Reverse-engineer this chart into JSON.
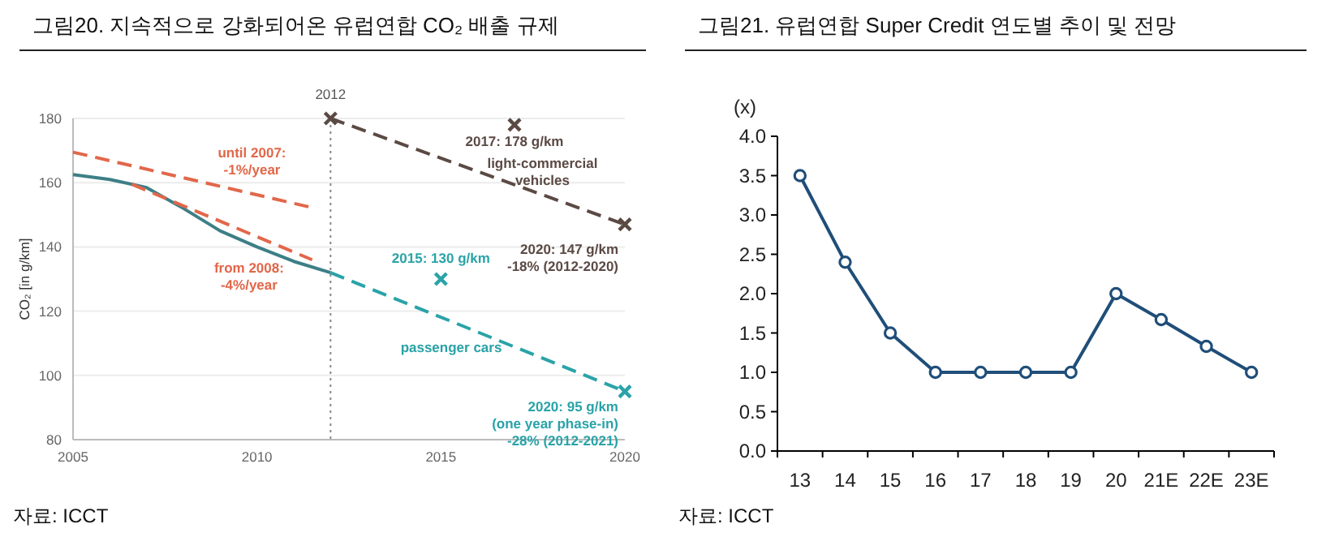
{
  "chart_data": [
    {
      "type": "line",
      "title": "그림20. 지속적으로 강화되어온 유럽연합 CO₂ 배출 규제",
      "ylabel": "CO₂ [in g/km]",
      "xlim": [
        2005,
        2020
      ],
      "xticks": [
        2005,
        2010,
        2015,
        2020
      ],
      "ylim": [
        80,
        180
      ],
      "yticks": [
        80,
        100,
        120,
        140,
        160,
        180
      ],
      "grid": "y",
      "series": [
        {
          "color": "#3d7f86",
          "line_style": "solid",
          "x": [
            2005,
            2006,
            2007,
            2008,
            2009,
            2010,
            2011,
            2012
          ],
          "values": [
            162.5,
            161,
            158.5,
            152,
            145,
            140,
            135.5,
            132
          ]
        },
        {
          "name": "passenger cars",
          "color": "#2aa3a8",
          "line_style": "dashed",
          "x": [
            2012,
            2020
          ],
          "values": [
            132,
            95
          ]
        },
        {
          "name": "until 2007: -1%/year",
          "color": "#e2674a",
          "line_style": "dashed",
          "x": [
            2005,
            2011.4
          ],
          "values": [
            169.5,
            152.5
          ]
        },
        {
          "name": "from 2008: -4%/year",
          "color": "#e2674a",
          "line_style": "dashed",
          "x": [
            2006.6,
            2011.5
          ],
          "values": [
            159.5,
            136
          ]
        },
        {
          "name": "light-commercial vehicles",
          "color": "#5b4a44",
          "line_style": "dashed",
          "x": [
            2012,
            2020
          ],
          "values": [
            180,
            147
          ]
        },
        {
          "type": "scatter",
          "marker": "cross",
          "color": "#5b4a44",
          "x": [
            2012,
            2017,
            2020
          ],
          "values": [
            180,
            178,
            147
          ]
        },
        {
          "type": "scatter",
          "marker": "cross",
          "color": "#2aa3a8",
          "x": [
            2015,
            2020
          ],
          "values": [
            130,
            95
          ]
        }
      ],
      "ref_lines": [
        {
          "axis": "x",
          "value": 2012,
          "label": "2012",
          "color": "#888888",
          "line_style": "dotted"
        }
      ],
      "annotations": [
        {
          "text": "2017: 178 g/km",
          "x": 2017,
          "y": 178
        },
        {
          "text": "2020: 147 g/km\n-18% (2012-2020)",
          "x": 2020,
          "y": 147
        },
        {
          "text": "2015: 130 g/km",
          "x": 2015,
          "y": 130
        },
        {
          "text": "2020: 95 g/km\n(one year phase-in)\n-28% (2012-2021)",
          "x": 2020,
          "y": 95
        },
        "자료: ICCT"
      ]
    },
    {
      "type": "line",
      "title": "그림21. 유럽연합 Super Credit 연도별 추이 및 전망",
      "ylabel": "(x)",
      "categories": [
        "13",
        "14",
        "15",
        "16",
        "17",
        "18",
        "19",
        "20",
        "21E",
        "22E",
        "23E"
      ],
      "ylim": [
        0,
        4
      ],
      "yticks": [
        {
          "value": 0,
          "label": "0.0"
        },
        {
          "value": 0.5,
          "label": "0.5"
        },
        {
          "value": 1,
          "label": "1.0"
        },
        {
          "value": 1.5,
          "label": "1.5"
        },
        {
          "value": 2,
          "label": "2.0"
        },
        {
          "value": 2.5,
          "label": "2.5"
        },
        {
          "value": 3,
          "label": "3.0"
        },
        {
          "value": 3.5,
          "label": "3.5"
        },
        {
          "value": 4,
          "label": "4.0"
        }
      ],
      "marker": "circle",
      "line_style": "solid",
      "series": [
        {
          "color": "#1f4e79",
          "values": [
            3.5,
            2.4,
            1.5,
            1,
            1,
            1,
            1,
            2,
            1.67,
            1.33,
            1
          ]
        }
      ],
      "annotations": [
        "자료: ICCT"
      ]
    }
  ]
}
